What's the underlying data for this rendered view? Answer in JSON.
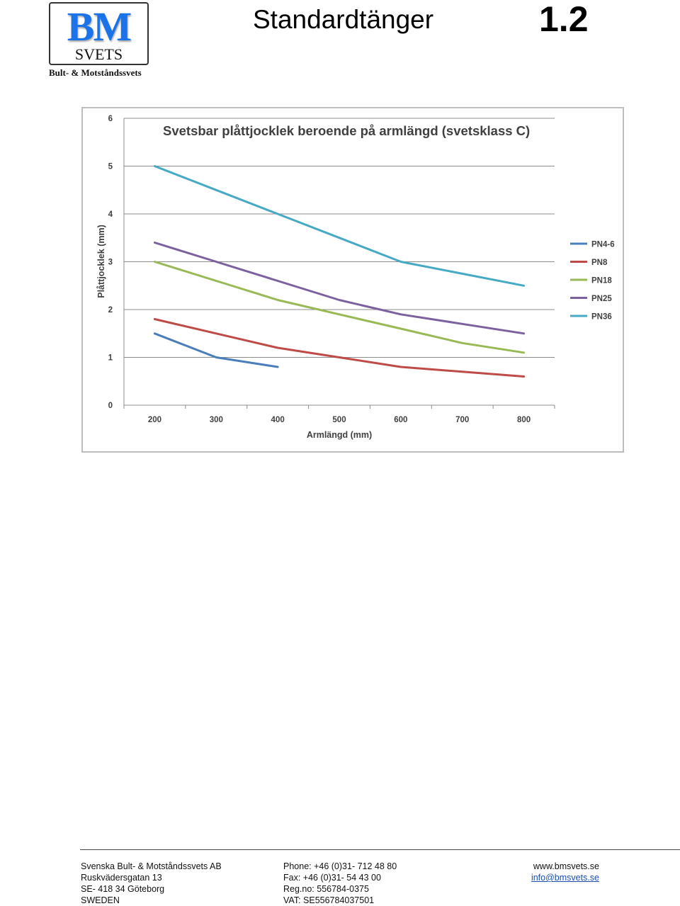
{
  "header": {
    "logo": {
      "main": "BM",
      "sub": "SVETS",
      "tagline": "Bult- & Motståndssvets"
    },
    "title": "Standardtänger",
    "page_number": "1.2"
  },
  "chart_data": {
    "type": "line",
    "title": "Svetsbar plåttjocklek beroende på armlängd (svetsklass C)",
    "xlabel": "Armlängd (mm)",
    "ylabel": "Plåttjocklek (mm)",
    "x": [
      200,
      300,
      400,
      500,
      600,
      700,
      800
    ],
    "xticks": [
      "200",
      "300",
      "400",
      "500",
      "600",
      "700",
      "800"
    ],
    "yticks": [
      "0",
      "1",
      "2",
      "3",
      "4",
      "5",
      "6"
    ],
    "ylim": [
      0,
      6
    ],
    "grid": "horizontal",
    "legend": "right",
    "series": [
      {
        "name": "PN4-6",
        "color": "#4a7ebb",
        "values": [
          1.5,
          1.0,
          0.8,
          null,
          null,
          null,
          null
        ]
      },
      {
        "name": "PN8",
        "color": "#be4b48",
        "values": [
          1.8,
          1.5,
          1.2,
          1.0,
          0.8,
          0.7,
          0.6
        ]
      },
      {
        "name": "PN18",
        "color": "#98b954",
        "values": [
          3.0,
          2.6,
          2.2,
          1.9,
          1.6,
          1.3,
          1.1
        ]
      },
      {
        "name": "PN25",
        "color": "#7d60a0",
        "values": [
          3.4,
          3.0,
          2.6,
          2.2,
          1.9,
          1.7,
          1.5
        ]
      },
      {
        "name": "PN36",
        "color": "#46aac5",
        "values": [
          5.0,
          4.5,
          4.0,
          3.5,
          3.0,
          2.75,
          2.5
        ]
      }
    ]
  },
  "footer": {
    "company": [
      "Svenska Bult- & Motståndssvets AB",
      "Ruskvädersgatan 13",
      "SE- 418 34 Göteborg",
      "SWEDEN"
    ],
    "contact": [
      "Phone: +46 (0)31- 712 48 80",
      "Fax: +46 (0)31- 54 43 00",
      "Reg.no: 556784-0375",
      "VAT: SE556784037501"
    ],
    "web": "www.bmsvets.se",
    "email": "info@bmsvets.se"
  }
}
